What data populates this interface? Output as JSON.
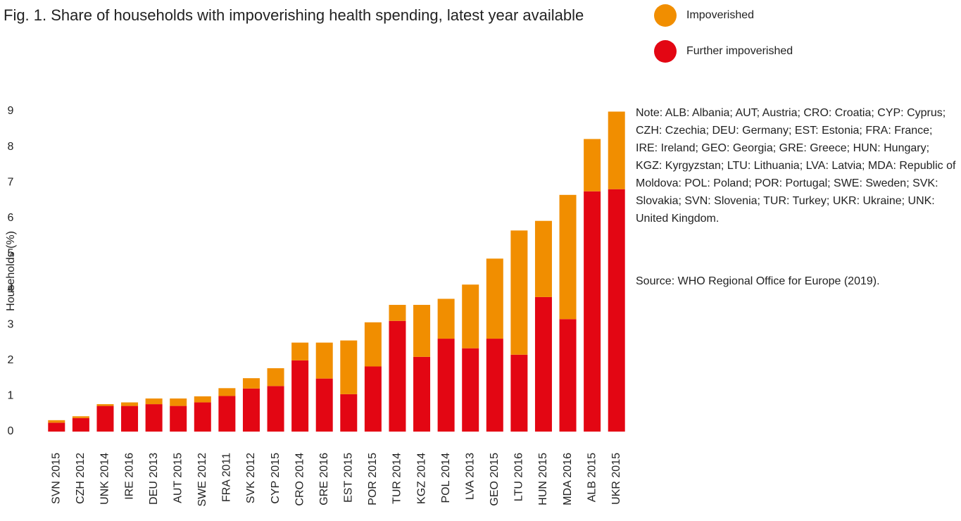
{
  "chart_data": {
    "type": "stacked_bar",
    "title": "Fig. 1. Share of households with impoverishing health spending, latest year available",
    "y_label": "Households (%)",
    "categories": [
      "SVN 2015",
      "CZH 2012",
      "UNK 2014",
      "IRE 2016",
      "DEU 2013",
      "AUT 2015",
      "SWE 2012",
      "FRA 2011",
      "SVK 2012",
      "CYP 2015",
      "CRO 2014",
      "GRE 2016",
      "EST 2015",
      "POR 2015",
      "TUR 2014",
      "KGZ 2014",
      "POL 2014",
      "LVA 2013",
      "GEO 2015",
      "LTU 2016",
      "HUN 2015",
      "MDA 2016",
      "ALB 2015",
      "UKR 2015"
    ],
    "series": [
      {
        "name": "Impoverished",
        "color": "#f18e00",
        "values": [
          0.07,
          0.05,
          0.05,
          0.1,
          0.16,
          0.21,
          0.17,
          0.22,
          0.29,
          0.5,
          0.5,
          1.01,
          1.51,
          1.24,
          0.45,
          1.46,
          1.12,
          1.79,
          2.25,
          3.49,
          2.14,
          3.49,
          1.47,
          2.18
        ]
      },
      {
        "name": "Further impoverished",
        "color": "#e30613",
        "values": [
          0.25,
          0.38,
          0.72,
          0.72,
          0.77,
          0.72,
          0.82,
          1.0,
          1.21,
          1.28,
          2.0,
          1.49,
          1.05,
          1.83,
          3.11,
          2.1,
          2.61,
          2.34,
          2.61,
          2.16,
          3.78,
          3.16,
          6.75,
          6.81
        ]
      }
    ],
    "ylim": [
      0,
      9
    ],
    "yticks": [
      0,
      1,
      2,
      3,
      4,
      5,
      6,
      7,
      8,
      9
    ],
    "grid": false,
    "note": "Note: ALB: Albania; AUT; Austria; CRO: Croatia; CYP: Cyprus; CZH: Czechia; DEU: Germany; EST: Estonia; FRA: France; IRE: Ireland; GEO: Georgia; GRE: Greece; HUN: Hungary; KGZ: Kyrgyzstan; LTU: Lithuania; LVA: Latvia; MDA: Republic of Moldova: POL: Poland; POR: Portugal; SWE: Sweden; SVK: Slovakia; SVN: Slovenia; TUR: Turkey; UKR: Ukraine; UNK: United Kingdom.",
    "source": "Source: WHO Regional Office for Europe (2019)."
  }
}
